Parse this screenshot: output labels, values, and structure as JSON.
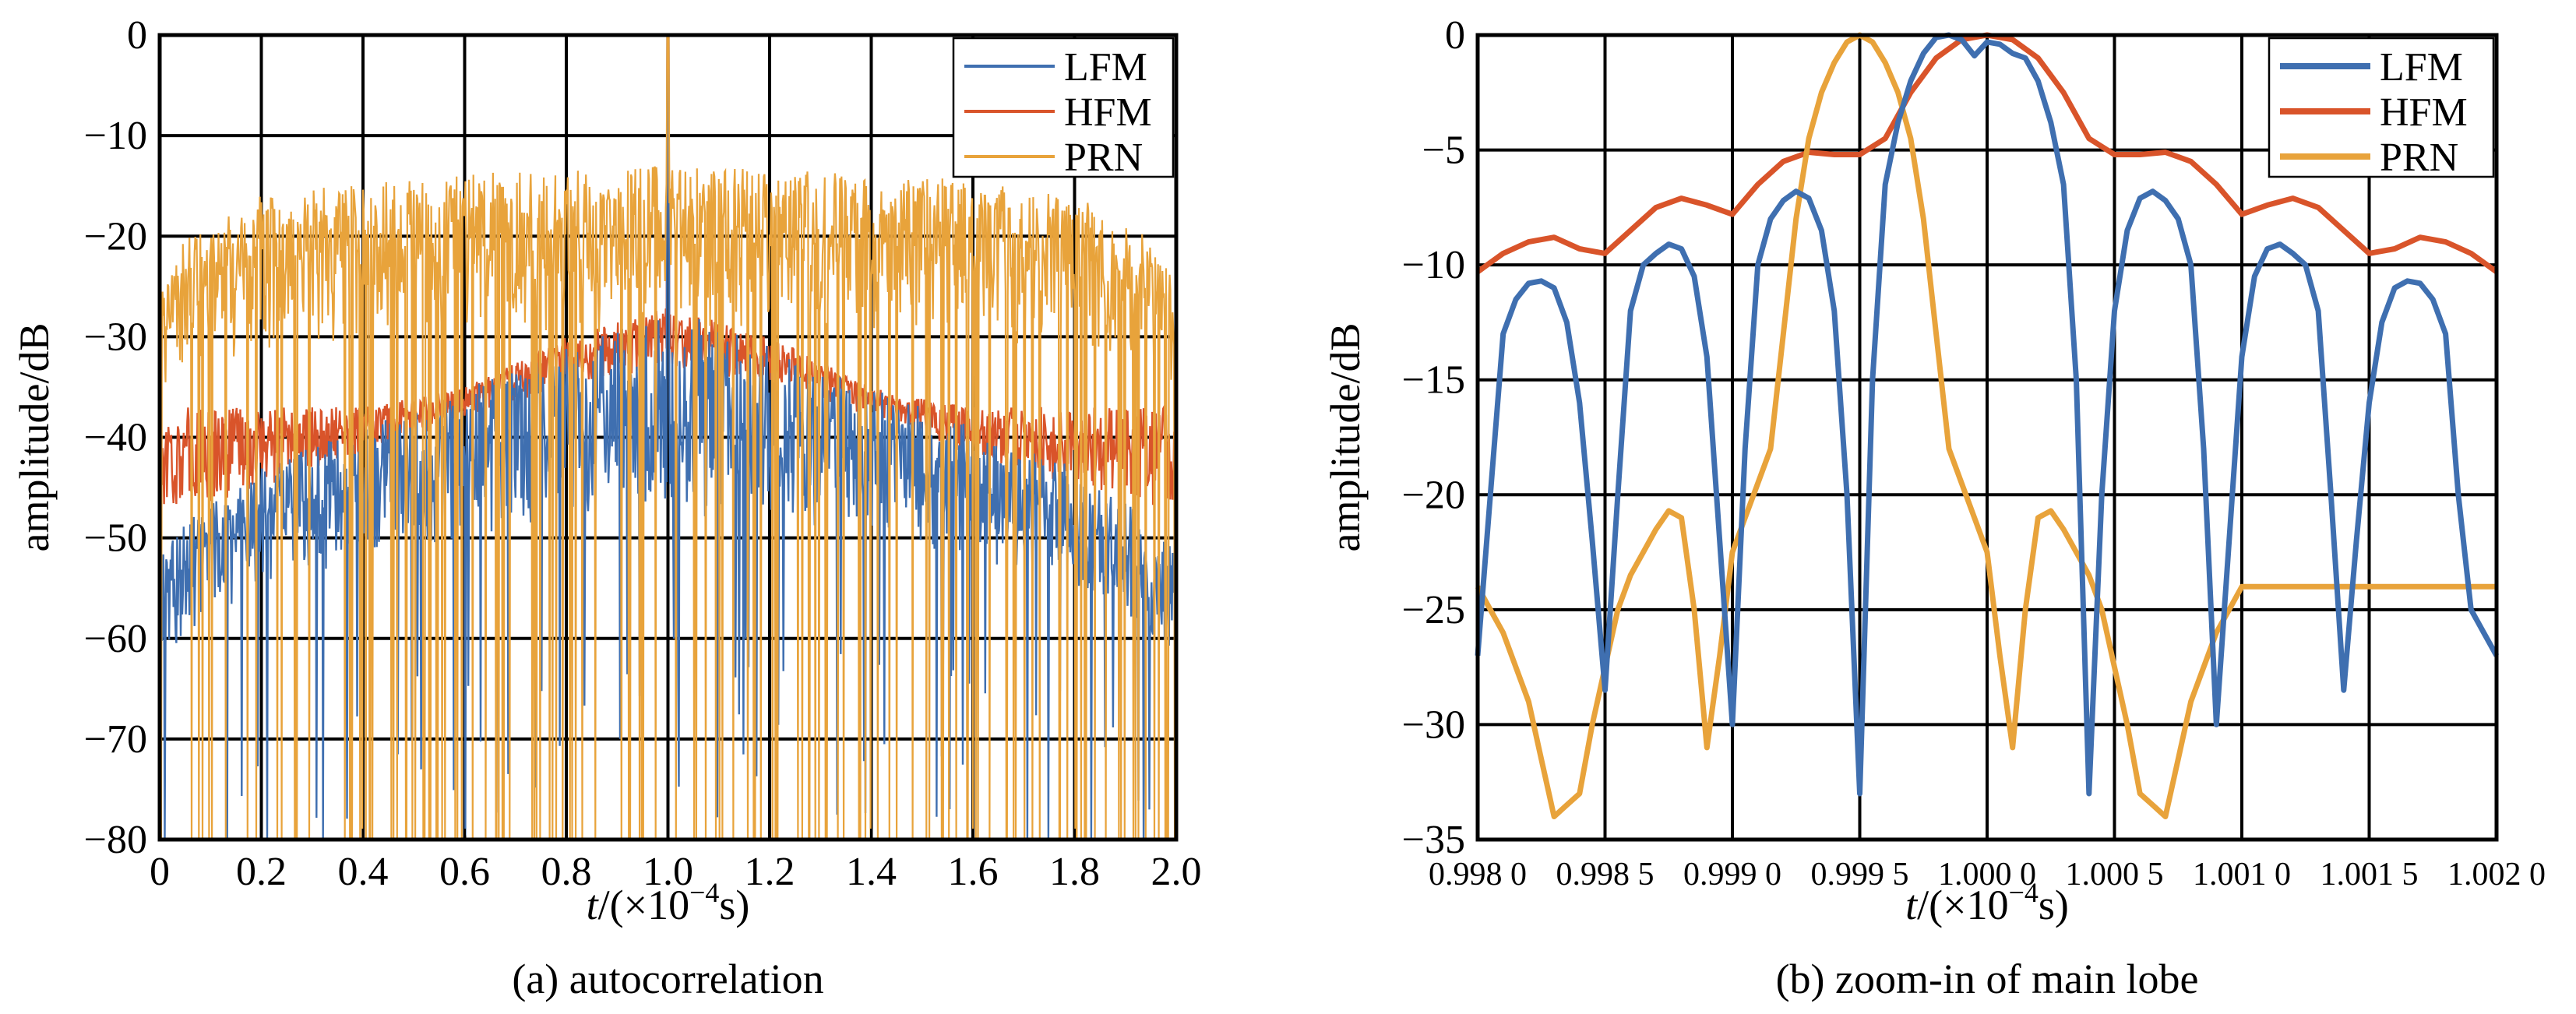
{
  "colors": {
    "LFM": "#3f6fb0",
    "HFM": "#d9542a",
    "PRN": "#e8a33b"
  },
  "chart_data": [
    {
      "type": "line",
      "caption": "(a) autocorrelation",
      "ylabel": "amplitude/dB",
      "xlabel_prefix": "t",
      "xlabel_rest": "/(×10",
      "xlabel_exp": "−4",
      "xlabel_unit": "s)",
      "xlim": [
        0,
        2.0
      ],
      "ylim": [
        -80,
        0
      ],
      "grid": true,
      "legend_position": "top-right",
      "x_ticks": [
        0,
        0.2,
        0.4,
        0.6,
        0.8,
        1.0,
        1.2,
        1.4,
        1.6,
        1.8,
        2.0
      ],
      "x_tick_labels": [
        "0",
        "0.2",
        "0.4",
        "0.6",
        "0.8",
        "1.0",
        "1.2",
        "1.4",
        "1.6",
        "1.8",
        "2.0"
      ],
      "y_ticks": [
        0,
        -10,
        -20,
        -30,
        -40,
        -50,
        -60,
        -70,
        -80
      ],
      "y_tick_labels": [
        "0",
        "−10",
        "−20",
        "−30",
        "−40",
        "−50",
        "−60",
        "−70",
        "−80"
      ],
      "legend": [
        "LFM",
        "HFM",
        "PRN"
      ],
      "series": [
        {
          "name": "LFM",
          "description": "dense sidelobes; peak 0 dB at t=1.0",
          "peak": {
            "x": 1.0,
            "y": 0
          },
          "upper_envelope": [
            [
              0.0,
              -50
            ],
            [
              0.2,
              -43
            ],
            [
              0.4,
              -39
            ],
            [
              0.6,
              -35
            ],
            [
              0.8,
              -31
            ],
            [
              1.0,
              -27
            ],
            [
              1.2,
              -31
            ],
            [
              1.4,
              -35
            ],
            [
              1.6,
              -39
            ],
            [
              1.8,
              -43
            ],
            [
              2.0,
              -50
            ]
          ],
          "lower_envelope": [
            [
              0.0,
              -62
            ],
            [
              0.2,
              -55
            ],
            [
              0.4,
              -52
            ],
            [
              0.6,
              -50
            ],
            [
              0.8,
              -48
            ],
            [
              1.0,
              -48
            ],
            [
              1.2,
              -48
            ],
            [
              1.4,
              -50
            ],
            [
              1.6,
              -52
            ],
            [
              1.8,
              -55
            ],
            [
              2.0,
              -62
            ]
          ]
        },
        {
          "name": "HFM",
          "peak": {
            "x": 1.0,
            "y": 0
          },
          "upper_envelope": [
            [
              0.0,
              -37
            ],
            [
              0.2,
              -37
            ],
            [
              0.4,
              -37
            ],
            [
              0.6,
              -35
            ],
            [
              0.8,
              -30
            ],
            [
              1.0,
              -27
            ],
            [
              1.2,
              -30
            ],
            [
              1.4,
              -35
            ],
            [
              1.6,
              -37
            ],
            [
              1.8,
              -37
            ],
            [
              2.0,
              -37
            ]
          ],
          "lower_envelope": [
            [
              0.0,
              -48
            ],
            [
              0.2,
              -45
            ],
            [
              0.4,
              -42
            ],
            [
              0.6,
              -38
            ],
            [
              0.8,
              -35
            ],
            [
              1.0,
              -33
            ],
            [
              1.2,
              -35
            ],
            [
              1.4,
              -38
            ],
            [
              1.6,
              -42
            ],
            [
              1.8,
              -45
            ],
            [
              2.0,
              -48
            ]
          ]
        },
        {
          "name": "PRN",
          "peak": {
            "x": 1.0,
            "y": 0
          },
          "upper_envelope": [
            [
              0.0,
              -25
            ],
            [
              0.05,
              -20
            ],
            [
              0.2,
              -16
            ],
            [
              0.5,
              -14
            ],
            [
              1.0,
              -13
            ],
            [
              1.5,
              -14
            ],
            [
              1.8,
              -16
            ],
            [
              1.95,
              -20
            ],
            [
              2.0,
              -25
            ]
          ],
          "lower_envelope": [
            [
              0.0,
              -36
            ],
            [
              0.2,
              -32
            ],
            [
              0.5,
              -30
            ],
            [
              1.0,
              -30
            ],
            [
              1.5,
              -30
            ],
            [
              1.8,
              -32
            ],
            [
              2.0,
              -36
            ]
          ]
        }
      ]
    },
    {
      "type": "line",
      "caption": "(b) zoom-in of main lobe",
      "ylabel": "amplitude/dB",
      "xlabel_prefix": "t",
      "xlabel_rest": "/(×10",
      "xlabel_exp": "−4",
      "xlabel_unit": "s)",
      "xlim": [
        0.998,
        1.002
      ],
      "ylim": [
        -35,
        0
      ],
      "grid": true,
      "legend_position": "top-right",
      "x_ticks": [
        0.998,
        0.9985,
        0.999,
        0.9995,
        1.0,
        1.0005,
        1.001,
        1.0015,
        1.002
      ],
      "x_tick_labels": [
        "0.998 0",
        "0.998 5",
        "0.999 0",
        "0.999 5",
        "1.000 0",
        "1.000 5",
        "1.001 0",
        "1.001 5",
        "1.002 0"
      ],
      "y_ticks": [
        0,
        -5,
        -10,
        -15,
        -20,
        -25,
        -30,
        -35
      ],
      "y_tick_labels": [
        "0",
        "−5",
        "−10",
        "−15",
        "−20",
        "−25",
        "−30",
        "−35"
      ],
      "legend": [
        "LFM",
        "HFM",
        "PRN"
      ],
      "series": [
        {
          "name": "LFM",
          "x": [
            0.998,
            0.99805,
            0.9981,
            0.99815,
            0.9982,
            0.99825,
            0.9983,
            0.99835,
            0.9984,
            0.99845,
            0.9985,
            0.99855,
            0.9986,
            0.99865,
            0.9987,
            0.99875,
            0.9988,
            0.99885,
            0.9989,
            0.99895,
            0.999,
            0.99905,
            0.9991,
            0.99915,
            0.9992,
            0.99925,
            0.9993,
            0.99935,
            0.9994,
            0.99945,
            0.9995,
            0.99955,
            0.9996,
            0.99965,
            0.9997,
            0.99975,
            0.9998,
            0.99985,
            0.9999,
            0.99995,
            1.0,
            1.00005,
            1.0001,
            1.00015,
            1.0002,
            1.00025,
            1.0003,
            1.00035,
            1.0004,
            1.00045,
            1.0005,
            1.00055,
            1.0006,
            1.00065,
            1.0007,
            1.00075,
            1.0008,
            1.00085,
            1.0009,
            1.00095,
            1.001,
            1.00105,
            1.0011,
            1.00115,
            1.0012,
            1.00125,
            1.0013,
            1.00135,
            1.0014,
            1.00145,
            1.0015,
            1.00155,
            1.0016,
            1.00165,
            1.0017,
            1.00175,
            1.0018,
            1.00185,
            1.0019,
            1.00195,
            1.002
          ],
          "y": [
            -27,
            -20,
            -13,
            -11.5,
            -10.8,
            -10.7,
            -11,
            -12.5,
            -16,
            -22,
            -28.5,
            -20,
            -12,
            -10,
            -9.5,
            -9.1,
            -9.3,
            -10.5,
            -14,
            -22,
            -30,
            -18,
            -10,
            -8,
            -7.2,
            -6.8,
            -7.1,
            -8.5,
            -12,
            -20,
            -33,
            -15,
            -6.5,
            -3.8,
            -2.0,
            -0.8,
            -0.1,
            0,
            -0.2,
            -0.9,
            -0.3,
            -0.4,
            -0.8,
            -1.0,
            -2.0,
            -3.8,
            -6.5,
            -15,
            -33,
            -20,
            -12,
            -8.5,
            -7.1,
            -6.8,
            -7.2,
            -8,
            -10,
            -18,
            -30,
            -22,
            -14,
            -10.5,
            -9.3,
            -9.1,
            -9.5,
            -10,
            -12,
            -20,
            -28.5,
            -22,
            -16,
            -12.5,
            -11,
            -10.7,
            -10.8,
            -11.5,
            -13,
            -20,
            -25,
            -26,
            -27
          ]
        },
        {
          "name": "HFM",
          "x": [
            0.998,
            0.9981,
            0.9982,
            0.9983,
            0.9984,
            0.9985,
            0.9986,
            0.9987,
            0.9988,
            0.9989,
            0.999,
            0.9991,
            0.9992,
            0.9993,
            0.9994,
            0.9995,
            0.9996,
            0.9997,
            0.9998,
            0.9999,
            1.0,
            1.0001,
            1.0002,
            1.0003,
            1.0004,
            1.0005,
            1.0006,
            1.0007,
            1.0008,
            1.0009,
            1.001,
            1.0011,
            1.0012,
            1.0013,
            1.0014,
            1.0015,
            1.0016,
            1.0017,
            1.0018,
            1.0019,
            1.002
          ],
          "y": [
            -10.3,
            -9.5,
            -9.0,
            -8.8,
            -9.3,
            -9.5,
            -8.5,
            -7.5,
            -7.1,
            -7.4,
            -7.8,
            -6.5,
            -5.5,
            -5.1,
            -5.2,
            -5.2,
            -4.5,
            -2.5,
            -1.0,
            -0.2,
            0,
            -0.2,
            -1.0,
            -2.5,
            -4.5,
            -5.2,
            -5.2,
            -5.1,
            -5.5,
            -6.5,
            -7.8,
            -7.4,
            -7.1,
            -7.5,
            -8.5,
            -9.5,
            -9.3,
            -8.8,
            -9.0,
            -9.5,
            -10.3
          ]
        },
        {
          "name": "PRN",
          "x": [
            0.998,
            0.99805,
            0.9981,
            0.99815,
            0.9982,
            0.99825,
            0.9983,
            0.99835,
            0.9984,
            0.99845,
            0.9985,
            0.99855,
            0.9986,
            0.99865,
            0.9987,
            0.99875,
            0.9988,
            0.99885,
            0.9989,
            0.99895,
            0.999,
            0.99905,
            0.9991,
            0.99915,
            0.9992,
            0.99925,
            0.9993,
            0.99935,
            0.9994,
            0.99945,
            0.9995,
            0.99955,
            0.9996,
            0.99965,
            0.9997,
            0.99975,
            0.9998,
            0.99985,
            0.9999,
            0.99995,
            1.0,
            1.00005,
            1.0001,
            1.00015,
            1.0002,
            1.00025,
            1.0003,
            1.00035,
            1.0004,
            1.00045,
            1.0005,
            1.00055,
            1.0006,
            1.00065,
            1.0007,
            1.00075,
            1.0008,
            1.00085,
            1.0009,
            1.00095,
            1.001,
            1.00105,
            1.0011,
            1.00115,
            1.0012,
            1.00125,
            1.0013,
            1.00135,
            1.0014,
            1.00145,
            1.0015,
            1.00155,
            1.0016,
            1.00165,
            1.0017,
            1.00175,
            1.0018,
            1.00185,
            1.0019,
            1.00195,
            1.002
          ],
          "y": [
            -24,
            -25,
            -26,
            -27.5,
            -29,
            -31.5,
            -34,
            -33.5,
            -33,
            -30,
            -27.5,
            -25,
            -23.5,
            -22.5,
            -21.5,
            -20.7,
            -21,
            -25,
            -31,
            -27,
            -22.5,
            -21,
            -19.5,
            -18,
            -13,
            -8,
            -4.5,
            -2.5,
            -1.2,
            -0.3,
            0,
            -0.3,
            -1.2,
            -2.5,
            -4.5,
            -8,
            -13,
            -18,
            -19.5,
            -21,
            -22.5,
            -27,
            -31,
            -25,
            -21,
            -20.7,
            -21.5,
            -22.5,
            -23.5,
            -25,
            -27.5,
            -30,
            -33,
            -33.5,
            -34,
            -31.5,
            -29,
            -27.5,
            -26,
            -25,
            -24,
            -24,
            -24,
            -24,
            -24,
            -24,
            -24,
            -24,
            -24,
            -24,
            -24,
            -24,
            -24,
            -24,
            -24,
            -24,
            -24,
            -24,
            -24,
            -24,
            -24
          ]
        }
      ]
    }
  ]
}
